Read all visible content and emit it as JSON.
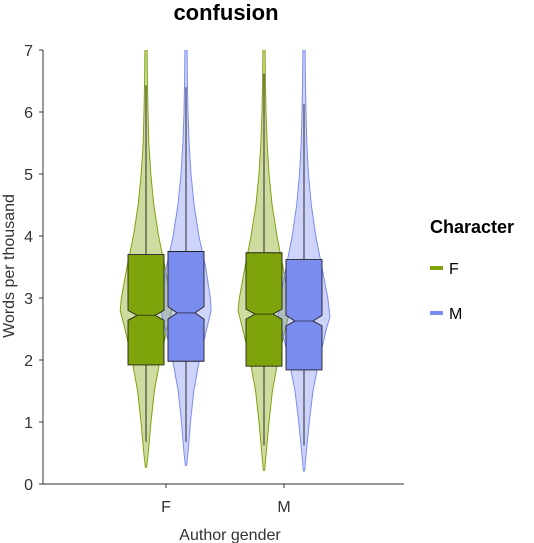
{
  "chart_data": {
    "type": "violin-boxplot",
    "title": "confusion",
    "xlabel": "Author gender",
    "ylabel": "Words per thousand",
    "categories": [
      "F",
      "M"
    ],
    "ylim": [
      0,
      7
    ],
    "yticks": [
      0,
      1,
      2,
      3,
      4,
      5,
      6,
      7
    ],
    "grid": false,
    "legend": {
      "title": "Character",
      "position": "right",
      "entries": [
        "F",
        "M"
      ]
    },
    "colors": {
      "F": "#7fa30a",
      "M": "#7b8cf0"
    },
    "series": [
      {
        "name": "F",
        "groups": [
          {
            "category": "F",
            "box": {
              "q1": 1.92,
              "median": 2.72,
              "q3": 3.7,
              "notch_low": 2.64,
              "notch_high": 2.8
            },
            "whisker": {
              "low": 0.68,
              "high": 6.43
            },
            "violin": [
              [
                0.27,
                0.02
              ],
              [
                0.5,
                0.08
              ],
              [
                1.0,
                0.18
              ],
              [
                1.5,
                0.3
              ],
              [
                2.0,
                0.5
              ],
              [
                2.5,
                0.75
              ],
              [
                2.8,
                0.92
              ],
              [
                3.0,
                0.88
              ],
              [
                3.5,
                0.68
              ],
              [
                4.0,
                0.45
              ],
              [
                4.5,
                0.28
              ],
              [
                5.0,
                0.17
              ],
              [
                5.5,
                0.1
              ],
              [
                6.0,
                0.07
              ],
              [
                6.5,
                0.05
              ],
              [
                7.0,
                0.04
              ]
            ]
          },
          {
            "category": "M",
            "box": {
              "q1": 1.9,
              "median": 2.74,
              "q3": 3.73,
              "notch_low": 2.66,
              "notch_high": 2.82
            },
            "whisker": {
              "low": 0.62,
              "high": 6.62
            },
            "violin": [
              [
                0.22,
                0.02
              ],
              [
                0.5,
                0.08
              ],
              [
                1.0,
                0.18
              ],
              [
                1.5,
                0.3
              ],
              [
                2.0,
                0.5
              ],
              [
                2.5,
                0.76
              ],
              [
                2.8,
                0.93
              ],
              [
                3.0,
                0.88
              ],
              [
                3.5,
                0.68
              ],
              [
                4.0,
                0.46
              ],
              [
                4.5,
                0.29
              ],
              [
                5.0,
                0.18
              ],
              [
                5.5,
                0.11
              ],
              [
                6.0,
                0.07
              ],
              [
                6.5,
                0.05
              ],
              [
                7.0,
                0.04
              ]
            ]
          }
        ]
      },
      {
        "name": "M",
        "groups": [
          {
            "category": "F",
            "box": {
              "q1": 1.98,
              "median": 2.76,
              "q3": 3.75,
              "notch_low": 2.66,
              "notch_high": 2.86
            },
            "whisker": {
              "low": 0.68,
              "high": 6.4
            },
            "violin": [
              [
                0.3,
                0.02
              ],
              [
                0.5,
                0.07
              ],
              [
                1.0,
                0.16
              ],
              [
                1.5,
                0.28
              ],
              [
                2.0,
                0.48
              ],
              [
                2.5,
                0.74
              ],
              [
                2.8,
                0.9
              ],
              [
                3.0,
                0.87
              ],
              [
                3.5,
                0.7
              ],
              [
                4.0,
                0.46
              ],
              [
                4.5,
                0.29
              ],
              [
                5.0,
                0.18
              ],
              [
                5.5,
                0.11
              ],
              [
                6.0,
                0.07
              ],
              [
                6.5,
                0.05
              ],
              [
                7.0,
                0.04
              ]
            ]
          },
          {
            "category": "M",
            "box": {
              "q1": 1.84,
              "median": 2.63,
              "q3": 3.62,
              "notch_low": 2.55,
              "notch_high": 2.72
            },
            "whisker": {
              "low": 0.62,
              "high": 6.13
            },
            "violin": [
              [
                0.21,
                0.02
              ],
              [
                0.5,
                0.08
              ],
              [
                1.0,
                0.19
              ],
              [
                1.5,
                0.32
              ],
              [
                2.0,
                0.54
              ],
              [
                2.5,
                0.8
              ],
              [
                2.7,
                0.93
              ],
              [
                3.0,
                0.85
              ],
              [
                3.5,
                0.64
              ],
              [
                4.0,
                0.42
              ],
              [
                4.5,
                0.26
              ],
              [
                5.0,
                0.16
              ],
              [
                5.5,
                0.1
              ],
              [
                6.0,
                0.07
              ],
              [
                6.5,
                0.05
              ],
              [
                7.0,
                0.04
              ]
            ]
          }
        ]
      }
    ]
  }
}
